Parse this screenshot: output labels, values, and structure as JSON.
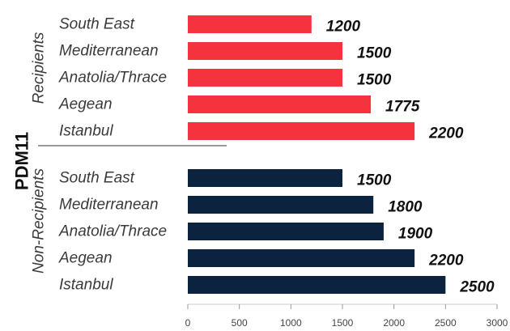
{
  "chart_data": {
    "type": "bar",
    "orientation": "horizontal",
    "title": "",
    "ylabel": "PDM11",
    "xlim": [
      0,
      3000
    ],
    "xticks": [
      0,
      500,
      1000,
      1500,
      2000,
      2500,
      3000
    ],
    "grid": false,
    "groups": [
      {
        "name": "Recipients",
        "color": "#f5333f",
        "categories": [
          "South East",
          "Mediterranean",
          "Anatolia/Thrace",
          "Aegean",
          "Istanbul"
        ],
        "values": [
          1200,
          1500,
          1500,
          1775,
          2200
        ]
      },
      {
        "name": "Non-Recipients",
        "color": "#0c2340",
        "categories": [
          "South East",
          "Mediterranean",
          "Anatolia/Thrace",
          "Aegean",
          "Istanbul"
        ],
        "values": [
          1500,
          1800,
          1900,
          2200,
          2500
        ]
      }
    ]
  }
}
